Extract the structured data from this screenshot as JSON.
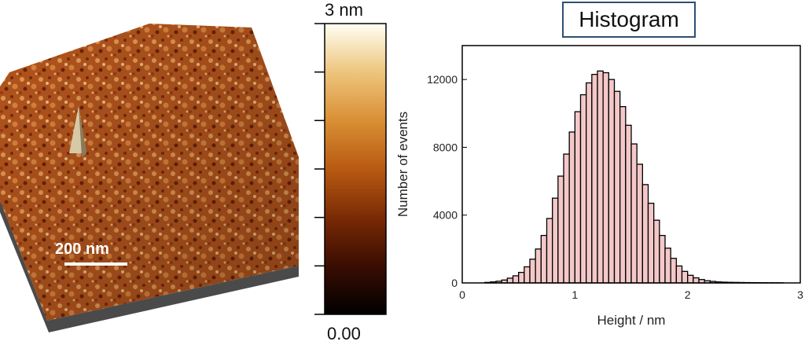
{
  "afm_image": {
    "scale_bar_label": "200 nm"
  },
  "colorbar": {
    "max_label": "3 nm",
    "min_label": "0.00",
    "colors": [
      "#000000",
      "#3a0d02",
      "#7a2a05",
      "#b85a12",
      "#d98f34",
      "#edc57d",
      "#fffff4"
    ]
  },
  "chart_data": {
    "type": "bar",
    "title": "Histogram",
    "xlabel": "Height / nm",
    "ylabel": "Number of events",
    "xlim": [
      0,
      3
    ],
    "ylim": [
      0,
      14000
    ],
    "xticks": [
      0,
      1,
      2,
      3
    ],
    "yticks": [
      0,
      4000,
      8000,
      12000
    ],
    "bar_fill": "#f4c8c8",
    "bar_edge": "#000000",
    "x": [
      0.2,
      0.25,
      0.3,
      0.35,
      0.4,
      0.45,
      0.5,
      0.55,
      0.6,
      0.65,
      0.7,
      0.75,
      0.8,
      0.85,
      0.9,
      0.95,
      1.0,
      1.05,
      1.1,
      1.15,
      1.2,
      1.25,
      1.3,
      1.35,
      1.4,
      1.45,
      1.5,
      1.55,
      1.6,
      1.65,
      1.7,
      1.75,
      1.8,
      1.85,
      1.9,
      1.95,
      2.0,
      2.05,
      2.1,
      2.15,
      2.2,
      2.25,
      2.3,
      2.35,
      2.4,
      2.45,
      2.5,
      2.55,
      2.6,
      2.65,
      2.7,
      2.75,
      2.8
    ],
    "values": [
      30,
      60,
      100,
      170,
      280,
      420,
      620,
      950,
      1400,
      2000,
      2800,
      3800,
      5000,
      6300,
      7600,
      8900,
      10100,
      11100,
      11800,
      12300,
      12500,
      12400,
      12000,
      11300,
      10400,
      9300,
      8200,
      7000,
      5800,
      4700,
      3700,
      2800,
      2050,
      1450,
      1000,
      680,
      450,
      300,
      200,
      130,
      90,
      60,
      45,
      35,
      30,
      25,
      20,
      18,
      15,
      12,
      10,
      8,
      6
    ]
  }
}
